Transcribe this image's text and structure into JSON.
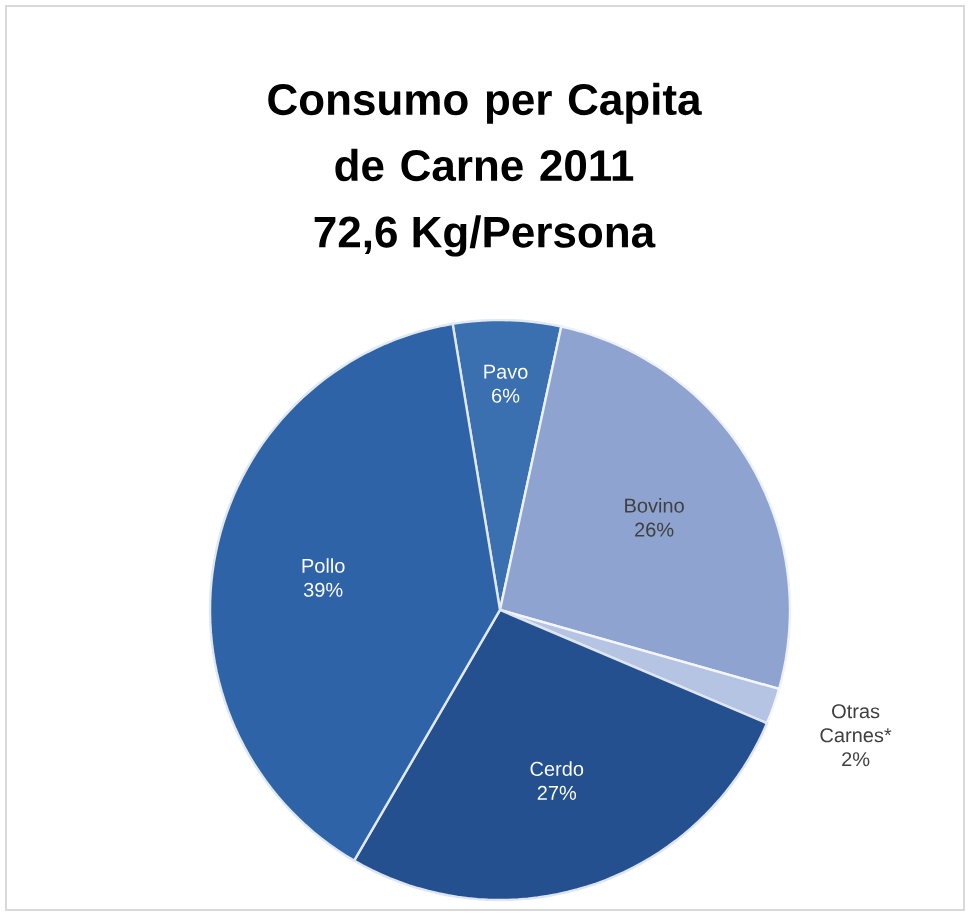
{
  "chart_data": {
    "type": "pie",
    "title": "Consumo per Capita de Carne 2011",
    "subtitle": "72,6 Kg/Persona",
    "categories": [
      "Pavo",
      "Bovino",
      "Otras Carnes*",
      "Cerdo",
      "Pollo"
    ],
    "values": [
      6,
      26,
      2,
      27,
      39
    ],
    "value_labels": [
      "6%",
      "26%",
      "2%",
      "27%",
      "39%"
    ],
    "colors": [
      "#3a6fb0",
      "#8ea3cf",
      "#b4c4e2",
      "#24508f",
      "#2f63a8"
    ]
  }
}
